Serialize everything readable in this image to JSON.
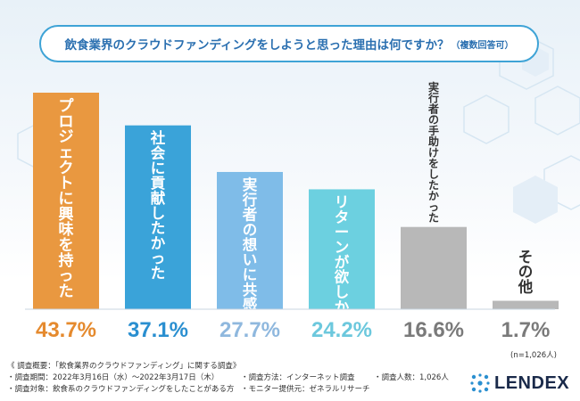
{
  "title": {
    "main": "飲食業界のクラウドファンディングをしようと思った理由は何ですか？",
    "note": "（複数回答可）"
  },
  "sample_note": "(n=1,026人)",
  "chart_data": {
    "type": "bar",
    "title": "飲食業界のクラウドファンディングをしようと思った理由は何ですか？（複数回答可）",
    "categories": [
      "プロジェクトに興味を持った",
      "社会に貢献したかった",
      "実行者の想いに共感した",
      "リターンが欲しかった",
      "実行者の手助けをしたかった",
      "その他"
    ],
    "values": [
      43.7,
      37.1,
      27.7,
      24.2,
      16.6,
      1.7
    ],
    "value_labels": [
      "43.7%",
      "37.1%",
      "27.7%",
      "24.2%",
      "16.6%",
      "1.7%"
    ],
    "ylim": [
      0,
      43.7
    ],
    "colors": [
      "#e99840",
      "#3aa3d9",
      "#7fbce8",
      "#6cd0e0",
      "#b8b8b8",
      "#b8b8b8"
    ],
    "label_colors": [
      "#ffffff",
      "#ffffff",
      "#ffffff",
      "#ffffff",
      "#333333",
      "#333333"
    ],
    "value_colors": [
      "#e58a2e",
      "#2a8fd0",
      "#8fb8de",
      "#6cc8dd",
      "#7a7a7a",
      "#7a7a7a"
    ]
  },
  "footer": {
    "heading": "《 調査概要：「飲食業界のクラウドファンディング」に関する調査》",
    "period": "・調査期間：2022年3月16日（水）〜2022年3月17日（木）",
    "method": "・調査方法：インターネット調査",
    "count": "・調査人数：1,026人",
    "target": "・調査対象：飲食系のクラウドファンディングをしたことがある方",
    "provider": "・モニター提供元：ゼネラルリサーチ"
  },
  "logo": {
    "text": "LENDEX"
  },
  "colors": {
    "accent": "#3ea3d6",
    "title_text": "#2a6fb0"
  }
}
